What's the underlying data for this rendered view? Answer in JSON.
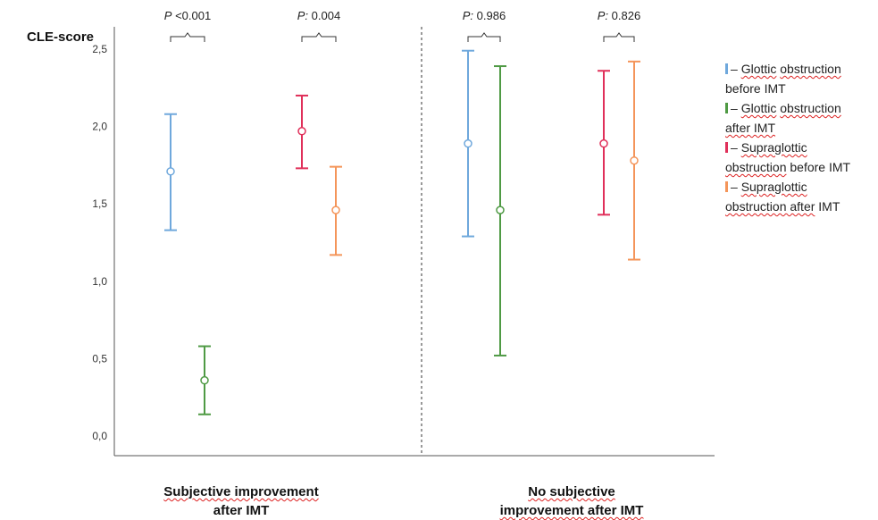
{
  "chart_data": {
    "type": "errorbar",
    "ylabel": "CLE-score",
    "ylim": [
      0,
      2.5
    ],
    "yticks": [
      "0,0",
      "0,5",
      "1,0",
      "1,5",
      "2,0",
      "2,5"
    ],
    "ytick_values": [
      0,
      0.5,
      1.0,
      1.5,
      2.0,
      2.5
    ],
    "groups": [
      {
        "label_line1": "Subjective improvement",
        "label_line2": "after IMT"
      },
      {
        "label_line1": "No subjective",
        "label_line2": "improvement after IMT"
      }
    ],
    "series": [
      {
        "name": "– Glottic obstruction before IMT",
        "color": "#6fa8dc",
        "points": [
          {
            "group": 0,
            "mean": 1.71,
            "low": 1.33,
            "high": 2.08
          },
          {
            "group": 1,
            "mean": 1.89,
            "low": 1.29,
            "high": 2.49
          }
        ]
      },
      {
        "name": "– Glottic obstruction after IMT",
        "color": "#4f9a44",
        "points": [
          {
            "group": 0,
            "mean": 0.36,
            "low": 0.14,
            "high": 0.58
          },
          {
            "group": 1,
            "mean": 1.46,
            "low": 0.52,
            "high": 2.39
          }
        ]
      },
      {
        "name": "– Supraglottic obstruction before IMT",
        "color": "#e0305a",
        "points": [
          {
            "group": 0,
            "mean": 1.97,
            "low": 1.73,
            "high": 2.2
          },
          {
            "group": 1,
            "mean": 1.89,
            "low": 1.43,
            "high": 2.36
          }
        ]
      },
      {
        "name": "– Supraglottic obstruction after IMT",
        "color": "#f4955a",
        "points": [
          {
            "group": 0,
            "mean": 1.46,
            "low": 1.17,
            "high": 1.74
          },
          {
            "group": 1,
            "mean": 1.78,
            "low": 1.14,
            "high": 2.42
          }
        ]
      }
    ],
    "annotations": [
      {
        "prefix": "P",
        "text": " <0.001",
        "between": [
          0,
          1
        ],
        "group": 0
      },
      {
        "prefix": "P:",
        "text": " 0.004",
        "between": [
          2,
          3
        ],
        "group": 0
      },
      {
        "prefix": "P:",
        "text": " 0.986",
        "between": [
          0,
          1
        ],
        "group": 1
      },
      {
        "prefix": "P:",
        "text": " 0.826",
        "between": [
          2,
          3
        ],
        "group": 1
      }
    ],
    "divider": "dashed line between groups",
    "legend_position": "right"
  },
  "legend": [
    {
      "color": "#6fa8dc",
      "line1_pre": "– ",
      "line1_sq": "Glottic",
      "line1_mid": " ",
      "line1_sq2": "obstruction",
      "line2": "before IMT",
      "line2_sq": ""
    },
    {
      "color": "#4f9a44",
      "line1_pre": "– ",
      "line1_sq": "Glottic",
      "line1_mid": " ",
      "line1_sq2": "obstruction",
      "line2": "",
      "line2_sq": "after IMT"
    },
    {
      "color": "#e0305a",
      "line1_pre": "– ",
      "line1_sq": "Supraglottic",
      "line1_mid": "",
      "line1_sq2": "",
      "line2": " before IMT",
      "line2_sq": "obstruction"
    },
    {
      "color": "#f4955a",
      "line1_pre": "– ",
      "line1_sq": "Supraglottic",
      "line1_mid": "",
      "line1_sq2": "",
      "line2": " IMT",
      "line2_sq": "obstruction after"
    }
  ]
}
